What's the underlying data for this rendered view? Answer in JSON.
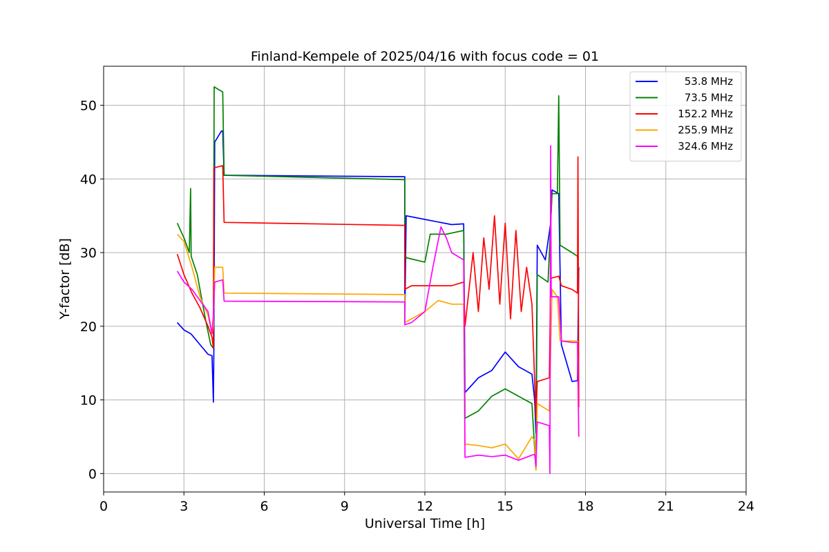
{
  "chart_data": {
    "type": "line",
    "title": "Finland-Kempele of 2025/04/16 with focus code = 01",
    "xlabel": "Universal Time [h]",
    "ylabel": "Y-factor [dB]",
    "xlim": [
      0,
      24
    ],
    "ylim": [
      -2.5,
      55.3
    ],
    "xticks": [
      0,
      3,
      6,
      9,
      12,
      15,
      18,
      21,
      24
    ],
    "yticks": [
      0,
      10,
      20,
      30,
      40,
      50
    ],
    "grid": true,
    "legend_position": "top-right",
    "series": [
      {
        "name": "53.8 MHz",
        "color": "#0000ff",
        "points": [
          [
            2.75,
            20.5
          ],
          [
            3.0,
            19.5
          ],
          [
            3.25,
            19.0
          ],
          [
            3.3,
            18.8
          ],
          [
            3.6,
            17.5
          ],
          [
            3.9,
            16.2
          ],
          [
            4.05,
            16.0
          ],
          [
            4.1,
            9.7
          ],
          [
            4.12,
            17.0
          ],
          [
            4.15,
            45.0
          ],
          [
            4.4,
            46.5
          ],
          [
            4.45,
            46.5
          ],
          [
            4.5,
            40.5
          ],
          [
            11.25,
            40.3
          ],
          [
            11.25,
            20.4
          ],
          [
            11.3,
            35.0
          ],
          [
            12.0,
            34.5
          ],
          [
            13.0,
            33.8
          ],
          [
            13.45,
            33.9
          ],
          [
            13.5,
            11.0
          ],
          [
            14.0,
            13.0
          ],
          [
            14.5,
            14.0
          ],
          [
            14.8,
            15.5
          ],
          [
            15.0,
            16.5
          ],
          [
            15.5,
            14.5
          ],
          [
            16.0,
            13.5
          ],
          [
            16.1,
            10.0
          ],
          [
            16.15,
            5.5
          ],
          [
            16.2,
            31.0
          ],
          [
            16.5,
            29.0
          ],
          [
            16.7,
            34.0
          ],
          [
            16.75,
            38.5
          ],
          [
            17.0,
            38.0
          ],
          [
            17.1,
            17.5
          ],
          [
            17.5,
            12.5
          ],
          [
            17.7,
            12.6
          ],
          [
            17.75,
            28.0
          ]
        ]
      },
      {
        "name": "73.5 MHz",
        "color": "#008000",
        "points": [
          [
            2.75,
            34.0
          ],
          [
            3.0,
            32.0
          ],
          [
            3.2,
            30.0
          ],
          [
            3.25,
            38.7
          ],
          [
            3.27,
            29.5
          ],
          [
            3.5,
            27.0
          ],
          [
            3.8,
            21.0
          ],
          [
            4.0,
            17.5
          ],
          [
            4.1,
            17.0
          ],
          [
            4.13,
            52.5
          ],
          [
            4.45,
            51.8
          ],
          [
            4.5,
            40.5
          ],
          [
            11.25,
            39.9
          ],
          [
            11.25,
            30.0
          ],
          [
            11.3,
            29.3
          ],
          [
            12.0,
            28.7
          ],
          [
            12.2,
            32.5
          ],
          [
            12.8,
            32.5
          ],
          [
            13.45,
            33.0
          ],
          [
            13.5,
            7.5
          ],
          [
            14.0,
            8.5
          ],
          [
            14.5,
            10.5
          ],
          [
            15.0,
            11.5
          ],
          [
            15.5,
            10.5
          ],
          [
            16.0,
            9.5
          ],
          [
            16.15,
            0.5
          ],
          [
            16.2,
            27.0
          ],
          [
            16.6,
            26.0
          ],
          [
            16.75,
            38.0
          ],
          [
            16.95,
            38.0
          ],
          [
            17.0,
            51.3
          ],
          [
            17.05,
            31.0
          ],
          [
            17.5,
            30.0
          ],
          [
            17.7,
            29.5
          ],
          [
            17.75,
            27.0
          ]
        ]
      },
      {
        "name": "152.2 MHz",
        "color": "#ff0000",
        "points": [
          [
            2.75,
            29.8
          ],
          [
            3.0,
            27.0
          ],
          [
            3.3,
            24.5
          ],
          [
            3.6,
            22.5
          ],
          [
            3.9,
            20.0
          ],
          [
            4.05,
            18.5
          ],
          [
            4.1,
            17.0
          ],
          [
            4.12,
            41.5
          ],
          [
            4.45,
            41.8
          ],
          [
            4.5,
            34.1
          ],
          [
            11.25,
            33.7
          ],
          [
            11.25,
            25.0
          ],
          [
            11.5,
            25.5
          ],
          [
            12.0,
            25.5
          ],
          [
            13.0,
            25.5
          ],
          [
            13.45,
            26.0
          ],
          [
            13.5,
            20.0
          ],
          [
            13.8,
            30.0
          ],
          [
            14.0,
            22.0
          ],
          [
            14.2,
            32.0
          ],
          [
            14.4,
            25.0
          ],
          [
            14.6,
            35.0
          ],
          [
            14.8,
            23.0
          ],
          [
            15.0,
            34.0
          ],
          [
            15.2,
            21.0
          ],
          [
            15.4,
            33.0
          ],
          [
            15.6,
            22.0
          ],
          [
            15.8,
            28.0
          ],
          [
            16.0,
            23.0
          ],
          [
            16.15,
            7.5
          ],
          [
            16.2,
            12.5
          ],
          [
            16.65,
            13.0
          ],
          [
            16.7,
            26.5
          ],
          [
            17.0,
            26.8
          ],
          [
            17.1,
            25.5
          ],
          [
            17.5,
            25.0
          ],
          [
            17.7,
            24.5
          ],
          [
            17.72,
            43.0
          ],
          [
            17.75,
            9.0
          ]
        ]
      },
      {
        "name": "255.9 MHz",
        "color": "#ffa500",
        "points": [
          [
            2.75,
            32.5
          ],
          [
            3.0,
            31.5
          ],
          [
            3.3,
            28.0
          ],
          [
            3.6,
            24.0
          ],
          [
            3.9,
            21.5
          ],
          [
            4.05,
            19.0
          ],
          [
            4.1,
            20.0
          ],
          [
            4.15,
            28.0
          ],
          [
            4.45,
            28.0
          ],
          [
            4.5,
            24.5
          ],
          [
            11.25,
            24.3
          ],
          [
            11.25,
            20.5
          ],
          [
            11.5,
            21.0
          ],
          [
            12.0,
            22.0
          ],
          [
            12.5,
            23.5
          ],
          [
            13.0,
            23.0
          ],
          [
            13.45,
            23.0
          ],
          [
            13.5,
            4.0
          ],
          [
            14.0,
            3.8
          ],
          [
            14.5,
            3.5
          ],
          [
            15.0,
            4.0
          ],
          [
            15.5,
            2.0
          ],
          [
            16.0,
            5.0
          ],
          [
            16.1,
            4.5
          ],
          [
            16.15,
            0.5
          ],
          [
            16.2,
            9.5
          ],
          [
            16.65,
            8.5
          ],
          [
            16.75,
            25.0
          ],
          [
            16.95,
            24.0
          ],
          [
            17.05,
            18.0
          ],
          [
            17.5,
            18.0
          ],
          [
            17.7,
            18.0
          ],
          [
            17.75,
            5.0
          ]
        ]
      },
      {
        "name": "324.6 MHz",
        "color": "#ff00ff",
        "points": [
          [
            2.75,
            27.5
          ],
          [
            3.0,
            26.0
          ],
          [
            3.3,
            25.0
          ],
          [
            3.6,
            23.5
          ],
          [
            3.9,
            22.0
          ],
          [
            4.05,
            19.0
          ],
          [
            4.1,
            21.5
          ],
          [
            4.15,
            26.0
          ],
          [
            4.45,
            26.3
          ],
          [
            4.5,
            23.4
          ],
          [
            11.25,
            23.3
          ],
          [
            11.25,
            20.2
          ],
          [
            11.5,
            20.5
          ],
          [
            12.0,
            22.0
          ],
          [
            12.3,
            28.0
          ],
          [
            12.6,
            33.5
          ],
          [
            12.8,
            32.0
          ],
          [
            13.0,
            30.0
          ],
          [
            13.45,
            29.0
          ],
          [
            13.5,
            2.2
          ],
          [
            14.0,
            2.5
          ],
          [
            14.5,
            2.3
          ],
          [
            15.0,
            2.5
          ],
          [
            15.5,
            1.8
          ],
          [
            16.0,
            2.5
          ],
          [
            16.1,
            2.6
          ],
          [
            16.15,
            1.0
          ],
          [
            16.2,
            7.0
          ],
          [
            16.65,
            6.5
          ],
          [
            16.67,
            0.0
          ],
          [
            16.7,
            44.5
          ],
          [
            16.72,
            24.0
          ],
          [
            17.0,
            24.0
          ],
          [
            17.1,
            18.0
          ],
          [
            17.5,
            17.8
          ],
          [
            17.7,
            17.8
          ],
          [
            17.75,
            5.0
          ]
        ]
      }
    ]
  }
}
